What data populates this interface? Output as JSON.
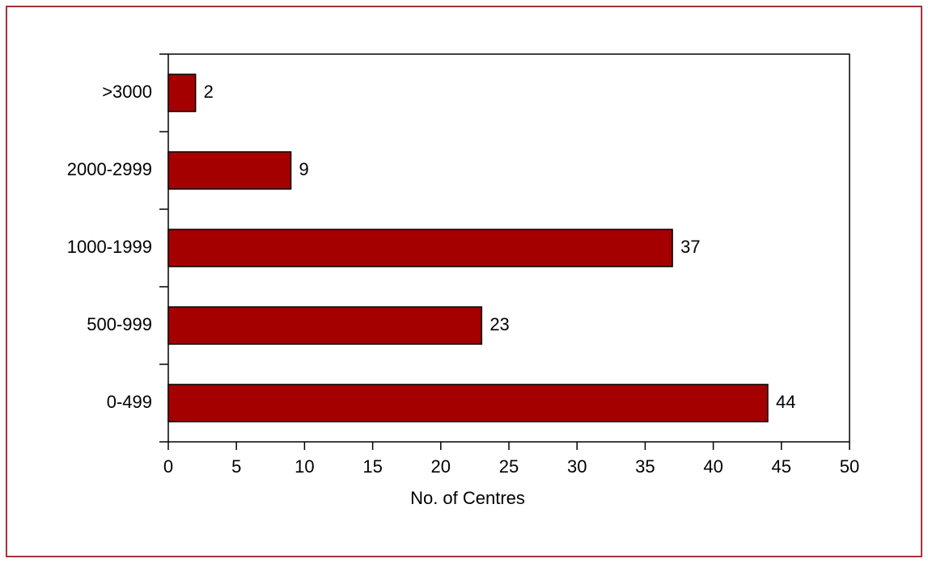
{
  "chart_data": {
    "type": "bar",
    "orientation": "horizontal",
    "x_label": "No. of Centres",
    "categories": [
      ">3000",
      "2000-2999",
      "1000-1999",
      "500-999",
      "0-499"
    ],
    "values": [
      2,
      9,
      37,
      23,
      44
    ],
    "color": "#a50000",
    "xlim": [
      0,
      50
    ],
    "xticks": [
      0,
      5,
      10,
      15,
      20,
      25,
      30,
      35,
      40,
      45,
      50
    ],
    "grid": false
  }
}
